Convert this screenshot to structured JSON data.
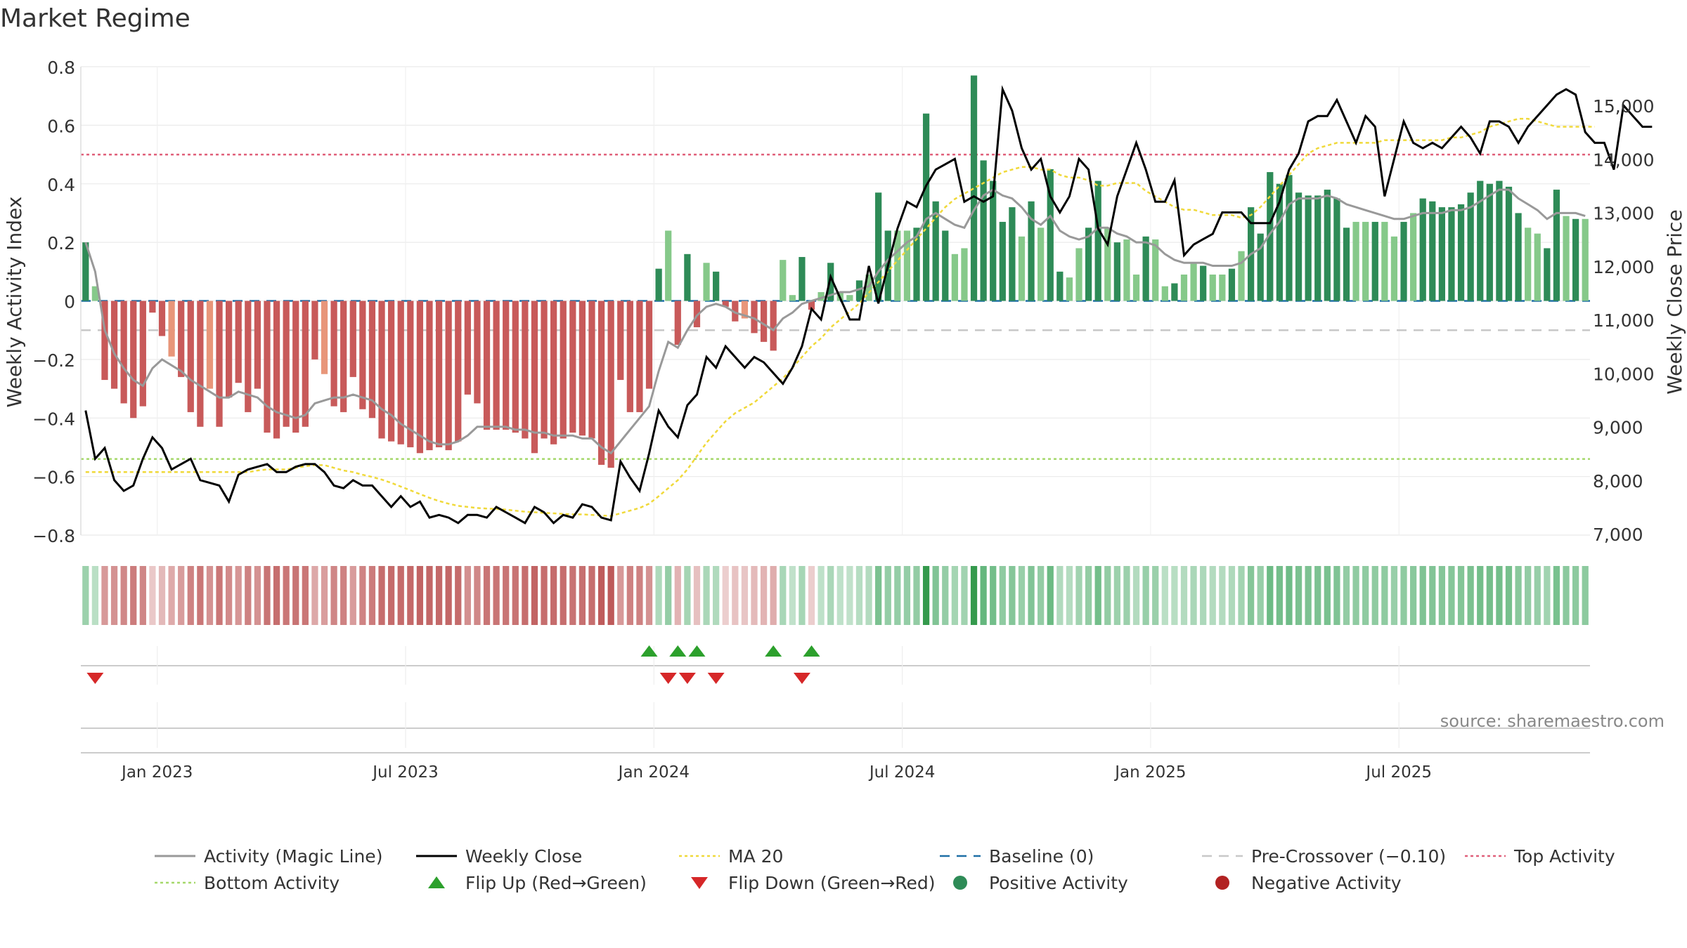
{
  "chart_data": {
    "type": "bar",
    "title": "Market Regime",
    "source": "source: sharemaestro.com",
    "ylabel_left": "Weekly Activity Index",
    "ylabel_right": "Weekly Close Price",
    "y_left_ticks": [
      "0.8",
      "0.6",
      "0.4",
      "0.2",
      "0",
      "−0.2",
      "−0.4",
      "−0.6",
      "−0.8"
    ],
    "y_left_range": [
      -0.8,
      0.8
    ],
    "y_right_ticks": [
      "15,000",
      "14,000",
      "13,000",
      "12,000",
      "11,000",
      "10,000",
      "9,000",
      "8,000",
      "7,000"
    ],
    "y_right_range": [
      7000,
      15000
    ],
    "x_ticks": [
      "Jan 2023",
      "Jul 2023",
      "Jan 2024",
      "Jul 2024",
      "Jan 2025",
      "Jul 2025"
    ],
    "x_tick_weeks": [
      8,
      34,
      60,
      86,
      112,
      138
    ],
    "grid": true,
    "legend_position": "bottom",
    "reference_lines": {
      "top_activity": 0.5,
      "bottom_activity": -0.54,
      "baseline": 0,
      "pre_crossover": -0.1
    },
    "colors": {
      "pos_dark": "#2e8b57",
      "pos_light": "#86c98a",
      "neg_dark": "#c85a5a",
      "neg_light": "#e8967a",
      "close": "#000000",
      "magic": "#999999",
      "ma": "#f0d93a",
      "top": "#e0607a",
      "bottom": "#a5d86a",
      "baseline": "#1f6fa6",
      "precross": "#c8c8c8",
      "flip_up": "#2ca02c",
      "flip_down": "#d62728"
    },
    "activity": [
      0.2,
      0.05,
      -0.27,
      -0.3,
      -0.35,
      -0.4,
      -0.36,
      -0.04,
      -0.12,
      -0.19,
      -0.26,
      -0.38,
      -0.43,
      -0.3,
      -0.43,
      -0.33,
      -0.28,
      -0.38,
      -0.3,
      -0.45,
      -0.47,
      -0.43,
      -0.45,
      -0.43,
      -0.2,
      -0.25,
      -0.36,
      -0.38,
      -0.26,
      -0.37,
      -0.4,
      -0.47,
      -0.48,
      -0.49,
      -0.5,
      -0.52,
      -0.51,
      -0.5,
      -0.51,
      -0.48,
      -0.32,
      -0.35,
      -0.44,
      -0.44,
      -0.44,
      -0.45,
      -0.47,
      -0.52,
      -0.47,
      -0.49,
      -0.47,
      -0.45,
      -0.46,
      -0.47,
      -0.56,
      -0.57,
      -0.27,
      -0.38,
      -0.38,
      -0.3,
      0.11,
      0.24,
      -0.15,
      0.16,
      -0.09,
      0.13,
      0.1,
      -0.02,
      -0.07,
      -0.06,
      -0.11,
      -0.14,
      -0.17,
      0.14,
      0.02,
      0.15,
      -0.03,
      0.03,
      0.13,
      0.03,
      0.02,
      0.07,
      0.09,
      0.37,
      0.24,
      0.24,
      0.24,
      0.25,
      0.64,
      0.34,
      0.24,
      0.16,
      0.18,
      0.77,
      0.48,
      0.41,
      0.27,
      0.32,
      0.22,
      0.34,
      0.25,
      0.45,
      0.1,
      0.08,
      0.18,
      0.25,
      0.41,
      0.25,
      0.2,
      0.21,
      0.09,
      0.22,
      0.21,
      0.05,
      0.06,
      0.09,
      0.13,
      0.12,
      0.09,
      0.09,
      0.11,
      0.17,
      0.32,
      0.23,
      0.44,
      0.4,
      0.43,
      0.37,
      0.36,
      0.36,
      0.38,
      0.35,
      0.25,
      0.27,
      0.27,
      0.27,
      0.27,
      0.22,
      0.27,
      0.3,
      0.35,
      0.34,
      0.32,
      0.32,
      0.33,
      0.37,
      0.41,
      0.4,
      0.41,
      0.39,
      0.3,
      0.25,
      0.23,
      0.18,
      0.38,
      0.29,
      0.28,
      0.28
    ],
    "close": [
      9300,
      8400,
      8600,
      8000,
      7800,
      7900,
      8400,
      8800,
      8600,
      8200,
      8300,
      8400,
      8000,
      7950,
      7900,
      7600,
      8100,
      8200,
      8250,
      8300,
      8150,
      8150,
      8250,
      8300,
      8300,
      8150,
      7900,
      7850,
      8000,
      7900,
      7900,
      7700,
      7500,
      7700,
      7500,
      7600,
      7300,
      7350,
      7300,
      7200,
      7350,
      7350,
      7300,
      7500,
      7400,
      7300,
      7200,
      7500,
      7400,
      7200,
      7350,
      7300,
      7550,
      7500,
      7300,
      7250,
      8350,
      8050,
      7800,
      8500,
      9300,
      9000,
      8800,
      9400,
      9600,
      10300,
      10100,
      10500,
      10300,
      10100,
      10300,
      10200,
      10000,
      9800,
      10100,
      10500,
      11200,
      11000,
      11800,
      11400,
      11000,
      11000,
      12000,
      11300,
      12000,
      12700,
      13200,
      13100,
      13500,
      13800,
      13900,
      14000,
      13200,
      13300,
      13200,
      13300,
      15300,
      14900,
      14200,
      13800,
      14000,
      13300,
      13000,
      13300,
      14000,
      13800,
      12700,
      12400,
      13300,
      13800,
      14300,
      13800,
      13200,
      13200,
      13600,
      12200,
      12400,
      12500,
      12600,
      13000,
      13000,
      13000,
      12800,
      12800,
      12800,
      13200,
      13800,
      14100,
      14700,
      14800,
      14800,
      15100,
      14700,
      14300,
      14800,
      14600,
      13300,
      14000,
      14700,
      14300,
      14200,
      14300,
      14200,
      14400,
      14600,
      14400,
      14100,
      14700,
      14700,
      14600,
      14300,
      14600,
      14800,
      15000,
      15200,
      15300,
      15200,
      14500,
      14300,
      14300,
      13800,
      15000,
      14800,
      14600,
      14600
    ],
    "magic": [
      0.2,
      0.1,
      -0.1,
      -0.18,
      -0.23,
      -0.27,
      -0.29,
      -0.23,
      -0.2,
      -0.22,
      -0.24,
      -0.27,
      -0.29,
      -0.31,
      -0.33,
      -0.33,
      -0.31,
      -0.32,
      -0.33,
      -0.36,
      -0.38,
      -0.39,
      -0.4,
      -0.39,
      -0.35,
      -0.34,
      -0.33,
      -0.33,
      -0.32,
      -0.33,
      -0.34,
      -0.37,
      -0.39,
      -0.42,
      -0.44,
      -0.46,
      -0.48,
      -0.49,
      -0.49,
      -0.48,
      -0.46,
      -0.43,
      -0.43,
      -0.43,
      -0.43,
      -0.44,
      -0.44,
      -0.45,
      -0.45,
      -0.46,
      -0.46,
      -0.46,
      -0.47,
      -0.47,
      -0.5,
      -0.52,
      -0.48,
      -0.44,
      -0.4,
      -0.36,
      -0.24,
      -0.14,
      -0.16,
      -0.1,
      -0.05,
      -0.02,
      -0.01,
      -0.02,
      -0.04,
      -0.05,
      -0.06,
      -0.08,
      -0.1,
      -0.06,
      -0.04,
      -0.01,
      0.0,
      0.01,
      0.02,
      0.03,
      0.03,
      0.04,
      0.05,
      0.1,
      0.14,
      0.17,
      0.2,
      0.22,
      0.28,
      0.3,
      0.28,
      0.26,
      0.25,
      0.31,
      0.36,
      0.38,
      0.36,
      0.35,
      0.32,
      0.28,
      0.26,
      0.29,
      0.24,
      0.22,
      0.21,
      0.22,
      0.25,
      0.25,
      0.23,
      0.22,
      0.2,
      0.2,
      0.19,
      0.16,
      0.14,
      0.13,
      0.13,
      0.13,
      0.12,
      0.12,
      0.12,
      0.13,
      0.16,
      0.18,
      0.23,
      0.27,
      0.33,
      0.35,
      0.35,
      0.35,
      0.36,
      0.35,
      0.33,
      0.32,
      0.31,
      0.3,
      0.29,
      0.28,
      0.28,
      0.29,
      0.3,
      0.3,
      0.3,
      0.31,
      0.31,
      0.32,
      0.34,
      0.36,
      0.38,
      0.38,
      0.35,
      0.33,
      0.31,
      0.28,
      0.3,
      0.3,
      0.3,
      0.29
    ],
    "ma20": [
      8150,
      8150,
      8150,
      8150,
      8150,
      8150,
      8150,
      8150,
      8150,
      8150,
      8150,
      8150,
      8150,
      8150,
      8150,
      8150,
      8150,
      8150,
      8180,
      8200,
      8200,
      8200,
      8230,
      8260,
      8280,
      8280,
      8230,
      8180,
      8150,
      8100,
      8060,
      8010,
      7950,
      7880,
      7810,
      7740,
      7670,
      7610,
      7560,
      7520,
      7500,
      7480,
      7470,
      7460,
      7450,
      7430,
      7410,
      7400,
      7390,
      7380,
      7370,
      7360,
      7360,
      7350,
      7340,
      7330,
      7380,
      7430,
      7480,
      7560,
      7700,
      7850,
      8000,
      8200,
      8450,
      8700,
      8900,
      9100,
      9250,
      9350,
      9450,
      9600,
      9750,
      9900,
      10100,
      10300,
      10500,
      10650,
      10850,
      11000,
      11150,
      11300,
      11500,
      11700,
      11900,
      12100,
      12300,
      12500,
      12700,
      12900,
      13100,
      13250,
      13350,
      13450,
      13550,
      13650,
      13750,
      13800,
      13850,
      13850,
      13800,
      13800,
      13700,
      13650,
      13650,
      13600,
      13500,
      13500,
      13550,
      13550,
      13550,
      13400,
      13300,
      13200,
      13100,
      13050,
      13050,
      13000,
      12950,
      12950,
      12950,
      12900,
      12950,
      13100,
      13300,
      13500,
      13700,
      13900,
      14100,
      14200,
      14250,
      14300,
      14300,
      14300,
      14300,
      14300,
      14350,
      14350,
      14350,
      14350,
      14350,
      14350,
      14350,
      14400,
      14400,
      14450,
      14500,
      14600,
      14650,
      14700,
      14750,
      14750,
      14700,
      14650,
      14600,
      14600,
      14600,
      14600,
      14600
    ],
    "flip_up": [
      59,
      62,
      64,
      72,
      76
    ],
    "flip_down": [
      1,
      61,
      63,
      66,
      75
    ]
  },
  "legend": [
    {
      "label": "Activity (Magic Line)",
      "icon": "line",
      "color": "#999999"
    },
    {
      "label": "Weekly Close",
      "icon": "line",
      "color": "#000000"
    },
    {
      "label": "MA 20",
      "icon": "dotted-line",
      "color": "#f0d93a"
    },
    {
      "label": "Baseline (0)",
      "icon": "dashed-line",
      "color": "#1f6fa6"
    },
    {
      "label": "Pre-Crossover (−0.10)",
      "icon": "dashed-line",
      "color": "#c8c8c8"
    },
    {
      "label": "Top Activity",
      "icon": "dotted-line",
      "color": "#e0607a"
    },
    {
      "label": "Bottom Activity",
      "icon": "dotted-line",
      "color": "#a5d86a"
    },
    {
      "label": "Flip Up (Red→Green)",
      "icon": "triangle-up",
      "color": "#2ca02c"
    },
    {
      "label": "Flip Down (Green→Red)",
      "icon": "triangle-down",
      "color": "#d62728"
    },
    {
      "label": "Positive Activity",
      "icon": "dot",
      "color": "#2e8b57"
    },
    {
      "label": "Negative Activity",
      "icon": "dot",
      "color": "#b22222"
    }
  ]
}
